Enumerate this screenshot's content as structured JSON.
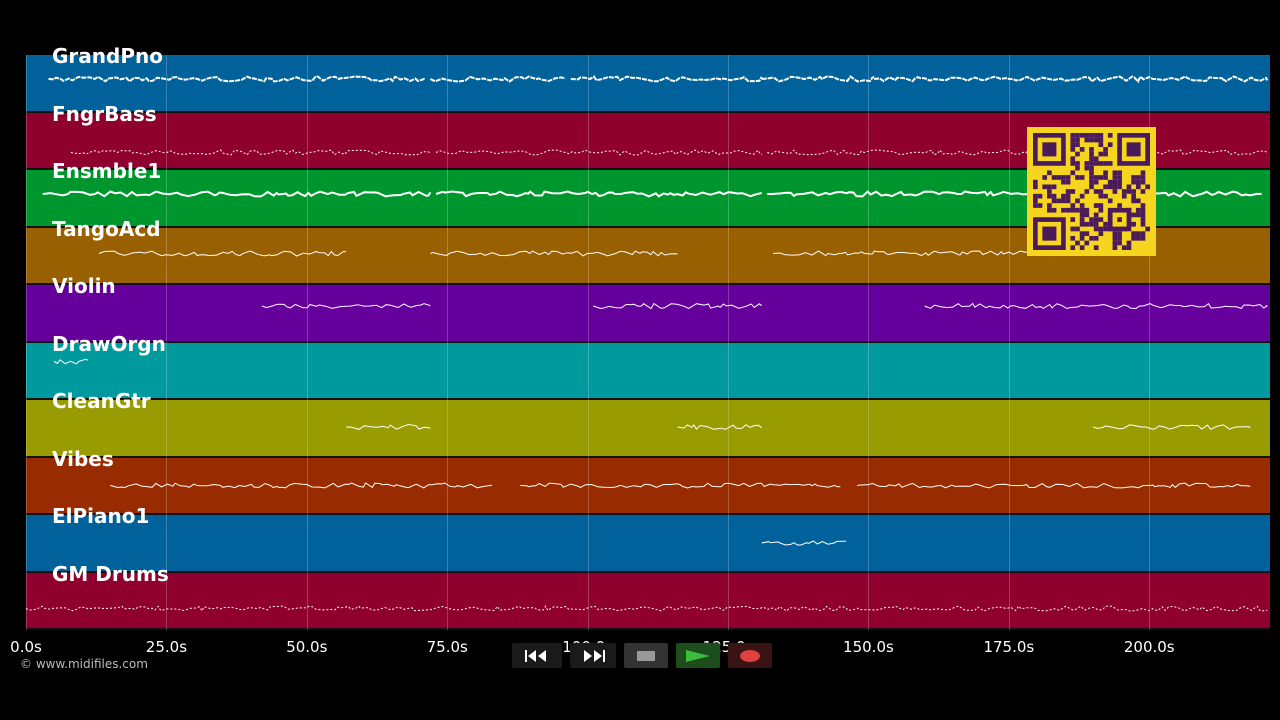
{
  "tracks": [
    {
      "name": "GrandPno",
      "color": "#00619b"
    },
    {
      "name": "FngrBass",
      "color": "#8f002f"
    },
    {
      "name": "Ensmble1",
      "color": "#00962e"
    },
    {
      "name": "TangoAcd",
      "color": "#986000"
    },
    {
      "name": "Violin",
      "color": "#66009c"
    },
    {
      "name": "DrawOrgn",
      "color": "#00999d"
    },
    {
      "name": "CleanGtr",
      "color": "#989c00"
    },
    {
      "name": "Vibes",
      "color": "#982c00"
    },
    {
      "name": "ElPiano1",
      "color": "#00619b"
    },
    {
      "name": "GM Drums",
      "color": "#8f002f"
    }
  ],
  "time_axis": {
    "ticks": [
      "0.0s",
      "25.0s",
      "50.0s",
      "75.0s",
      "100.0s",
      "125.0s",
      "150.0s",
      "175.0s",
      "200.0s"
    ],
    "max_seconds": 221.5
  },
  "copyright": "© www.midifiles.com",
  "transport": {
    "rewind_icon": "rewind-icon",
    "fast_forward_icon": "fast-forward-icon",
    "stop_icon": "stop-icon",
    "play_icon": "play-icon",
    "record_icon": "record-icon",
    "play_color": "#3dbb3d",
    "record_color": "#e04040"
  },
  "qr_code": {
    "icon": "qr-code-icon",
    "color": "#f5d51e"
  }
}
